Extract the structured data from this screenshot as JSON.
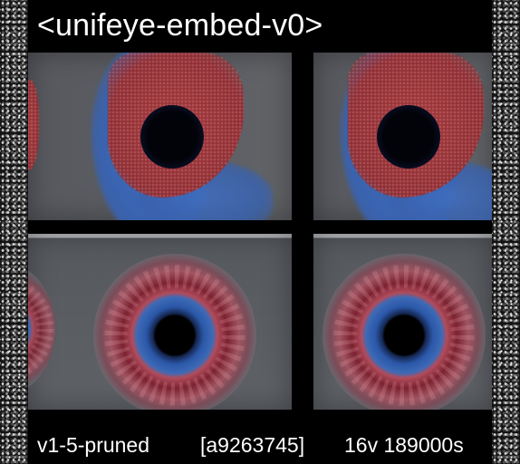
{
  "header": {
    "title": "<unifeye-embed-v0>"
  },
  "grid": {
    "panels": [
      {
        "view": "sagittal-eye-scan",
        "position": "top-left"
      },
      {
        "view": "sagittal-eye-scan",
        "position": "top-right"
      },
      {
        "view": "frontal-iris-scan",
        "position": "bottom-left"
      },
      {
        "view": "frontal-iris-scan",
        "position": "bottom-right"
      }
    ]
  },
  "footer": {
    "model": "v1-5-pruned",
    "hash": "[a9263745]",
    "stats": "16v 189000s"
  },
  "colors": {
    "background": "#000000",
    "text": "#ffffff",
    "tissue_red": "#8f2e34",
    "tissue_blue": "#3a62ad"
  }
}
